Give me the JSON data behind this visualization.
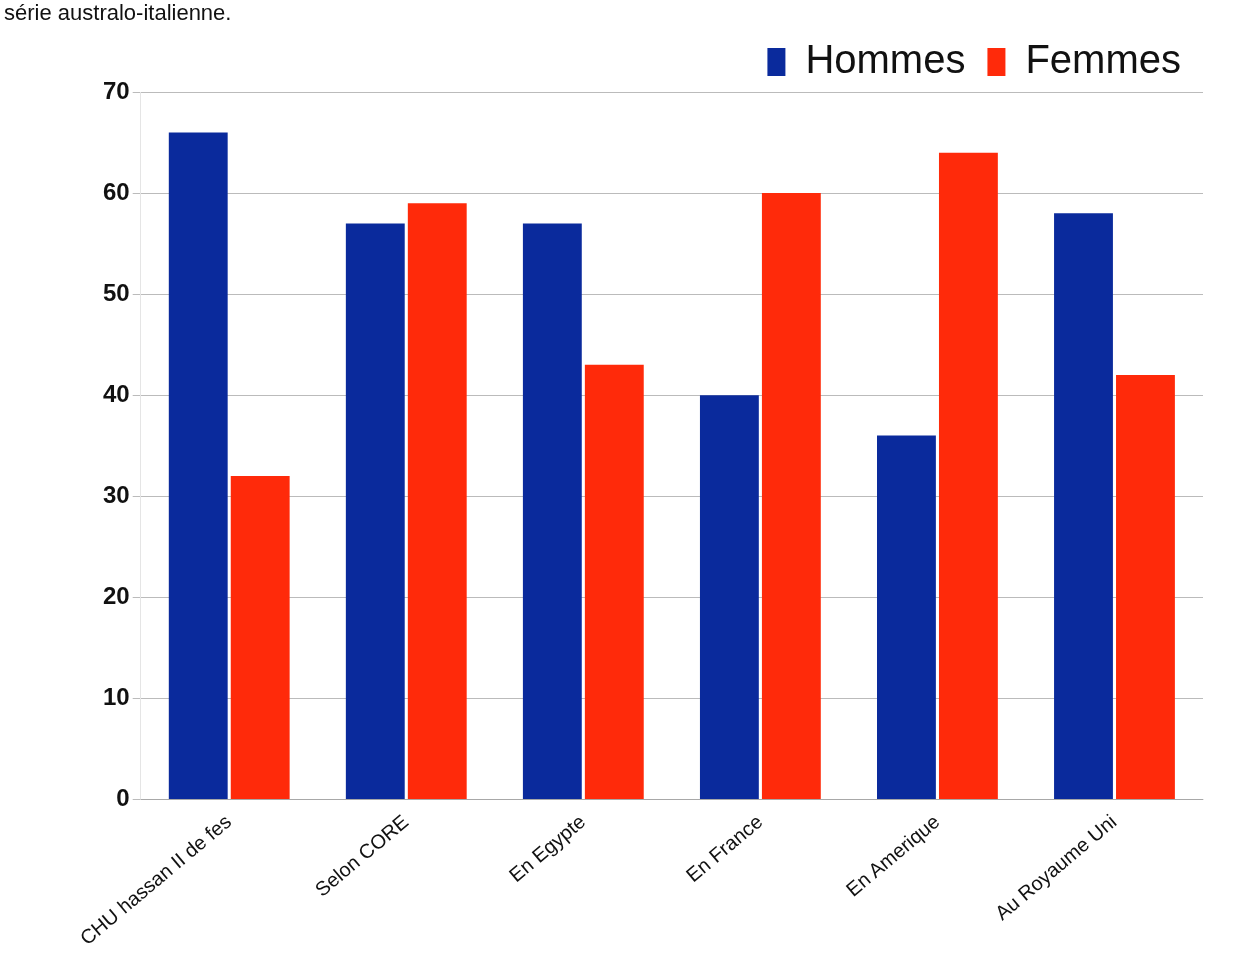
{
  "chart_data": {
    "type": "bar",
    "annotations": [
      "série australo-italienne."
    ],
    "categories": [
      "CHU hassan II de fes",
      "Selon CORE",
      "En Egypte",
      "En France",
      "En Amerique",
      "Au Royaume Uni"
    ],
    "series": [
      {
        "name": "Hommes",
        "color": "#0a2a9c",
        "values": [
          66,
          57,
          57,
          40,
          36,
          58
        ]
      },
      {
        "name": "Femmes",
        "color": "#ff2a0a",
        "values": [
          32,
          59,
          43,
          60,
          64,
          42
        ]
      }
    ],
    "ylim": [
      0,
      70
    ],
    "yticks": [
      0,
      10,
      20,
      30,
      40,
      50,
      60,
      70
    ],
    "grid": "y",
    "legend": "top right"
  }
}
